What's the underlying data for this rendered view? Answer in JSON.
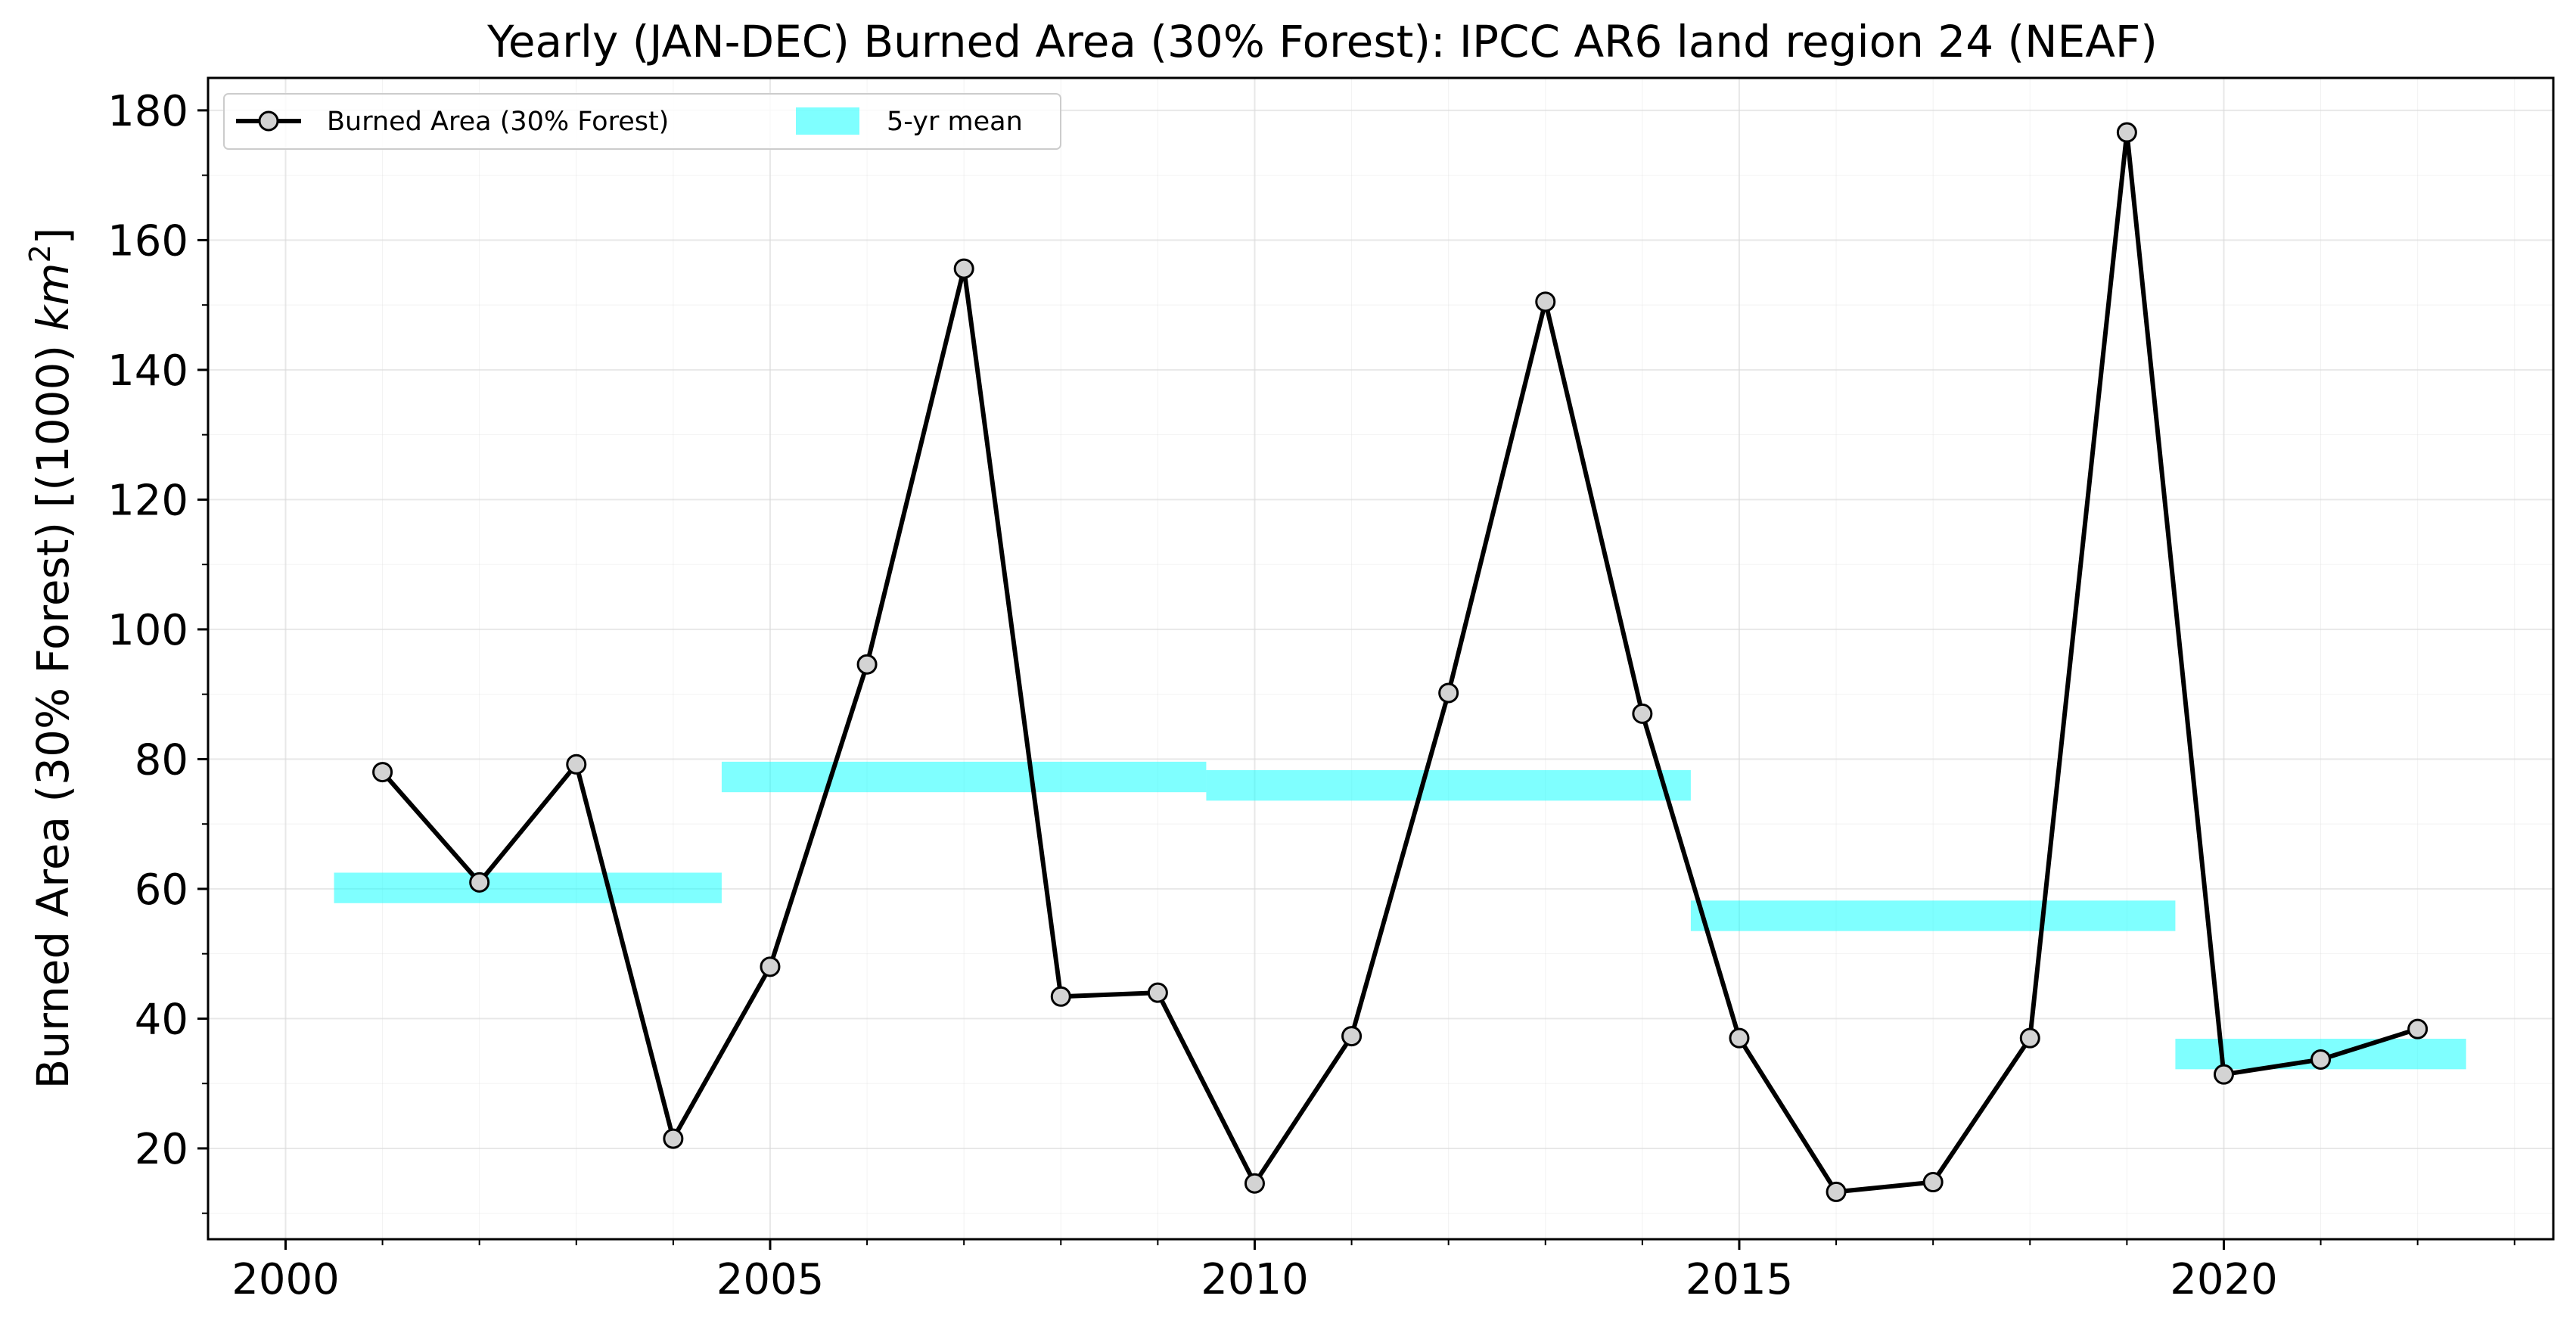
{
  "chart_data": {
    "type": "line",
    "title": "Yearly (JAN-DEC) Burned Area (30% Forest): IPCC AR6 land region 24 (NEAF)",
    "xlabel": "",
    "ylabel_main": "Burned Area (30% Forest) [(1000) ",
    "ylabel_unit": "km",
    "ylabel_sup": "2",
    "ylabel_end": "]",
    "xlim": [
      1999.2,
      2023.4
    ],
    "ylim": [
      6,
      185
    ],
    "xticks": [
      2000,
      2005,
      2010,
      2015,
      2020
    ],
    "yticks": [
      20,
      40,
      60,
      80,
      100,
      120,
      140,
      160,
      180
    ],
    "grid": true,
    "legend_position": "top-left",
    "series": [
      {
        "name": "Burned Area (30% Forest)",
        "color": "#000000",
        "marker_fill": "#d3d3d3",
        "x": [
          2001,
          2002,
          2003,
          2004,
          2005,
          2006,
          2007,
          2008,
          2009,
          2010,
          2011,
          2012,
          2013,
          2014,
          2015,
          2016,
          2017,
          2018,
          2019,
          2020,
          2021,
          2022
        ],
        "y": [
          78.0,
          61.0,
          79.2,
          21.5,
          48.0,
          94.6,
          155.6,
          43.4,
          44.0,
          14.6,
          37.3,
          90.2,
          150.5,
          87.0,
          37.0,
          13.3,
          14.8,
          37.0,
          176.6,
          31.4,
          33.7,
          38.4
        ]
      },
      {
        "name": "5-yr mean",
        "color": "#00ffff",
        "opacity": 0.5,
        "bars": [
          {
            "x0": 2000.5,
            "x1": 2004.5,
            "y0": 57.8,
            "y1": 62.5
          },
          {
            "x0": 2004.5,
            "x1": 2009.5,
            "y0": 74.9,
            "y1": 79.6
          },
          {
            "x0": 2009.5,
            "x1": 2014.5,
            "y0": 73.6,
            "y1": 78.3
          },
          {
            "x0": 2014.5,
            "x1": 2019.5,
            "y0": 53.5,
            "y1": 58.2
          },
          {
            "x0": 2019.5,
            "x1": 2022.5,
            "y0": 32.2,
            "y1": 36.9
          }
        ]
      }
    ]
  }
}
